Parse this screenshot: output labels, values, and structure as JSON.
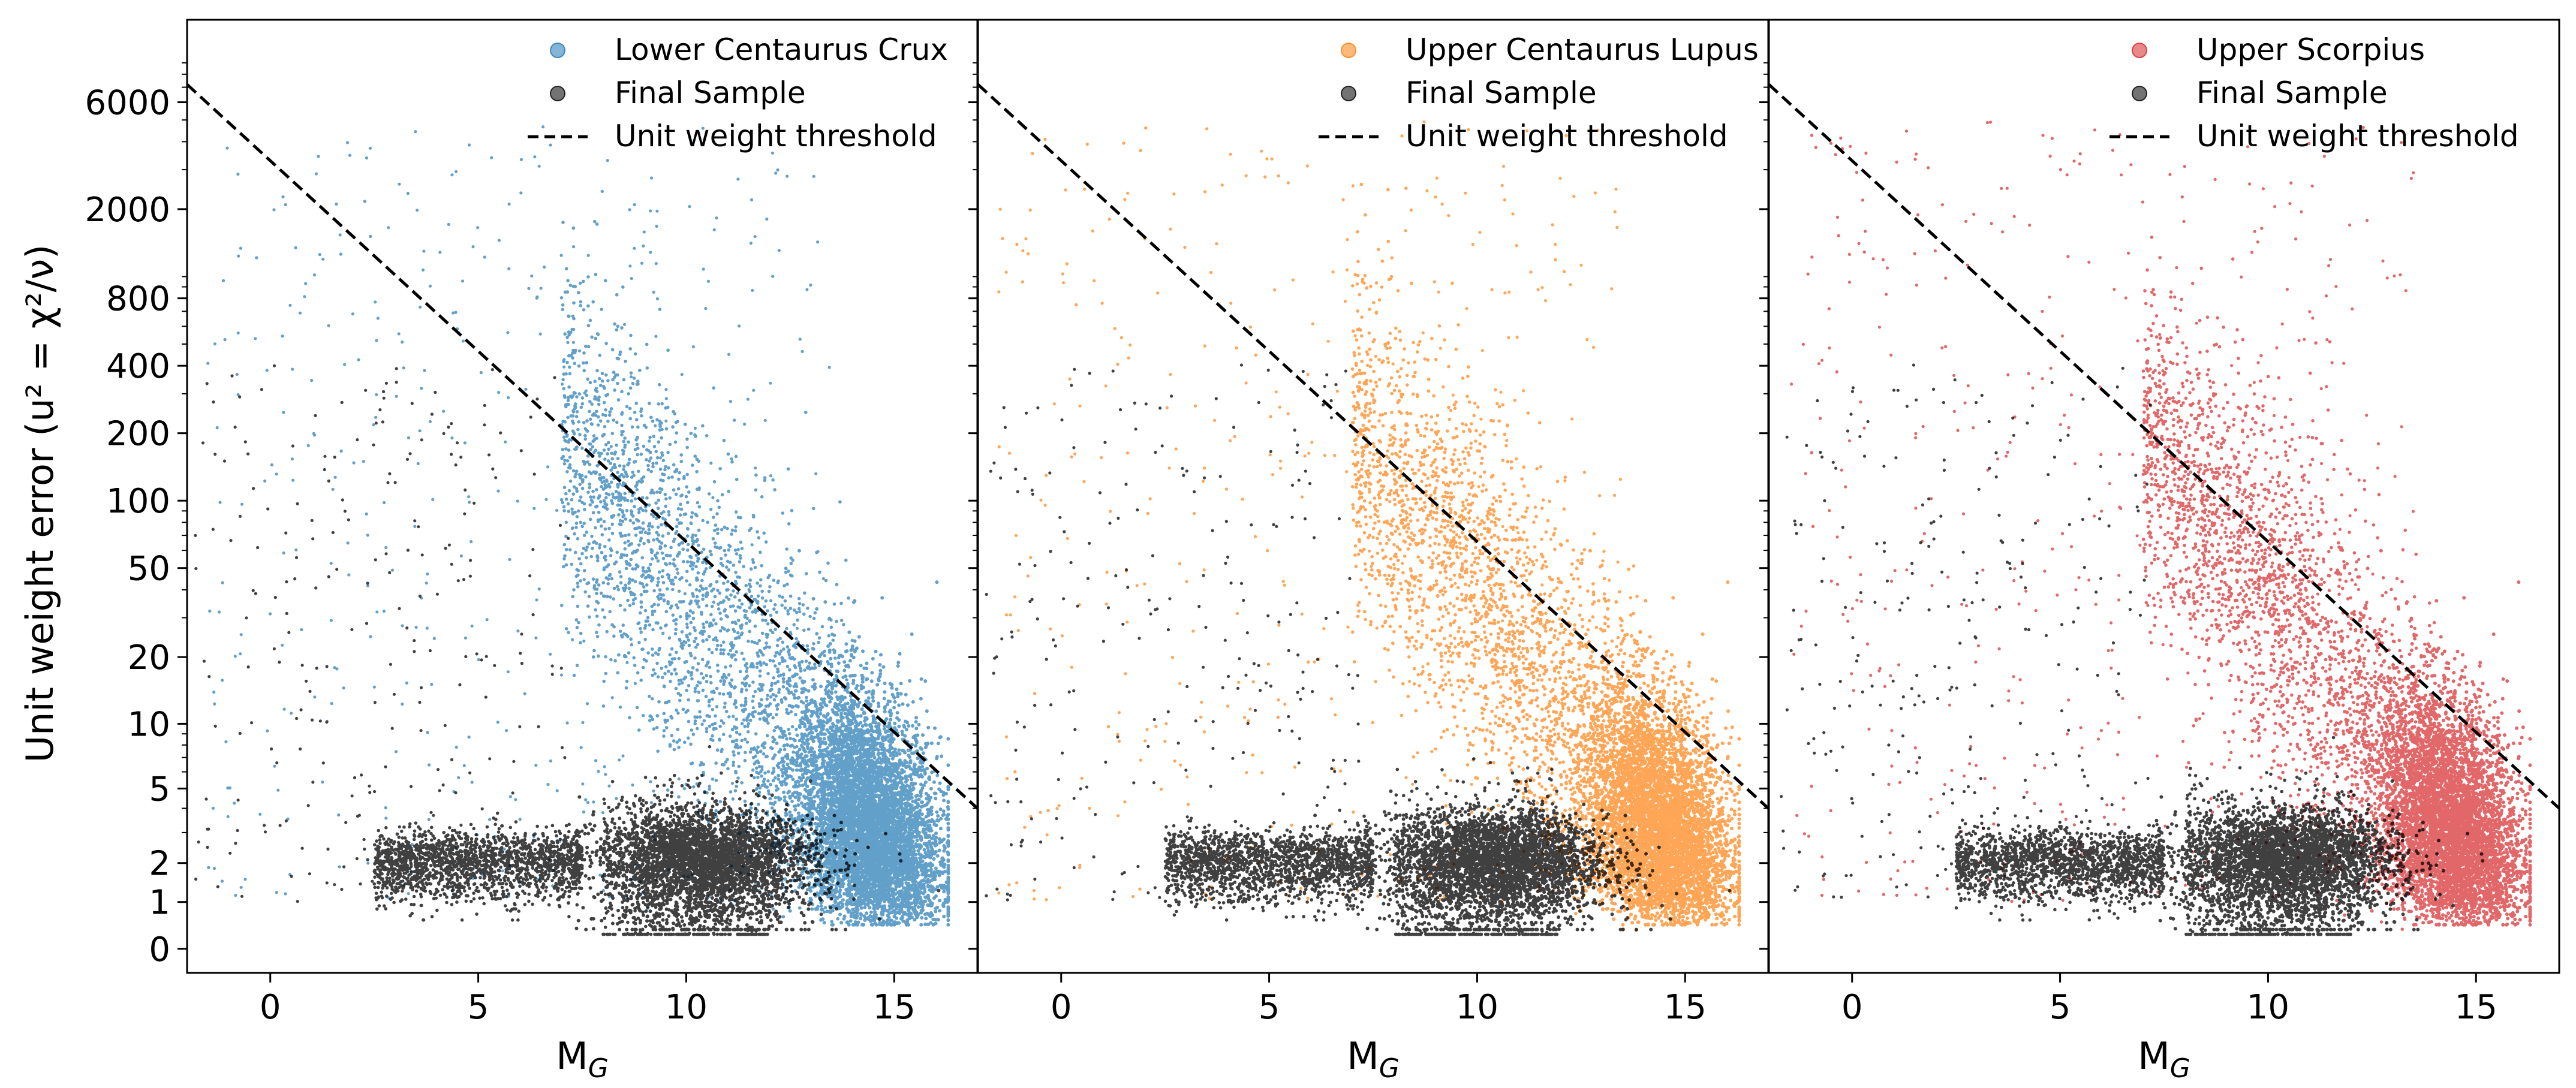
{
  "figure": {
    "ylabel": "Unit weight error (u² = χ²/ν)"
  },
  "chart_data": [
    {
      "type": "scatter",
      "xlabel_main": "M",
      "xlabel_sub": "G",
      "xlim": [
        -2,
        17
      ],
      "x_ticks": [
        0,
        5,
        10,
        15
      ],
      "y_ticks": [
        0,
        1,
        2,
        5,
        10,
        20,
        50,
        100,
        200,
        400,
        800,
        2000,
        6000
      ],
      "y_scale": "symlog",
      "legend_placement": "upper-right",
      "region_color": "#1f77b4",
      "series": [
        {
          "name": "Lower Centaurus Crux",
          "color": "#1f77b4",
          "marker": "circle"
        },
        {
          "name": "Final Sample",
          "color": "#000000",
          "marker": "circle"
        },
        {
          "name": "Unit weight threshold",
          "color": "#000000",
          "style": "dashed"
        }
      ],
      "threshold_line": {
        "x": [
          -2,
          17
        ],
        "y": [
          7200,
          4.0
        ]
      }
    },
    {
      "type": "scatter",
      "xlabel_main": "M",
      "xlabel_sub": "G",
      "xlim": [
        -2,
        17
      ],
      "x_ticks": [
        0,
        5,
        10,
        15
      ],
      "y_scale": "symlog",
      "legend_placement": "upper-right",
      "region_color": "#ff7f0e",
      "series": [
        {
          "name": "Upper Centaurus Lupus",
          "color": "#ff7f0e",
          "marker": "circle"
        },
        {
          "name": "Final Sample",
          "color": "#000000",
          "marker": "circle"
        },
        {
          "name": "Unit weight threshold",
          "color": "#000000",
          "style": "dashed"
        }
      ],
      "threshold_line": {
        "x": [
          -2,
          17
        ],
        "y": [
          7200,
          4.0
        ]
      }
    },
    {
      "type": "scatter",
      "xlabel_main": "M",
      "xlabel_sub": "G",
      "xlim": [
        -2,
        17
      ],
      "x_ticks": [
        0,
        5,
        10,
        15
      ],
      "y_scale": "symlog",
      "legend_placement": "upper-right",
      "region_color": "#d62728",
      "series": [
        {
          "name": "Upper Scorpius",
          "color": "#d62728",
          "marker": "circle"
        },
        {
          "name": "Final Sample",
          "color": "#000000",
          "marker": "circle"
        },
        {
          "name": "Unit weight threshold",
          "color": "#000000",
          "style": "dashed"
        }
      ],
      "threshold_line": {
        "x": [
          -2,
          17
        ],
        "y": [
          7200,
          4.0
        ]
      }
    }
  ]
}
